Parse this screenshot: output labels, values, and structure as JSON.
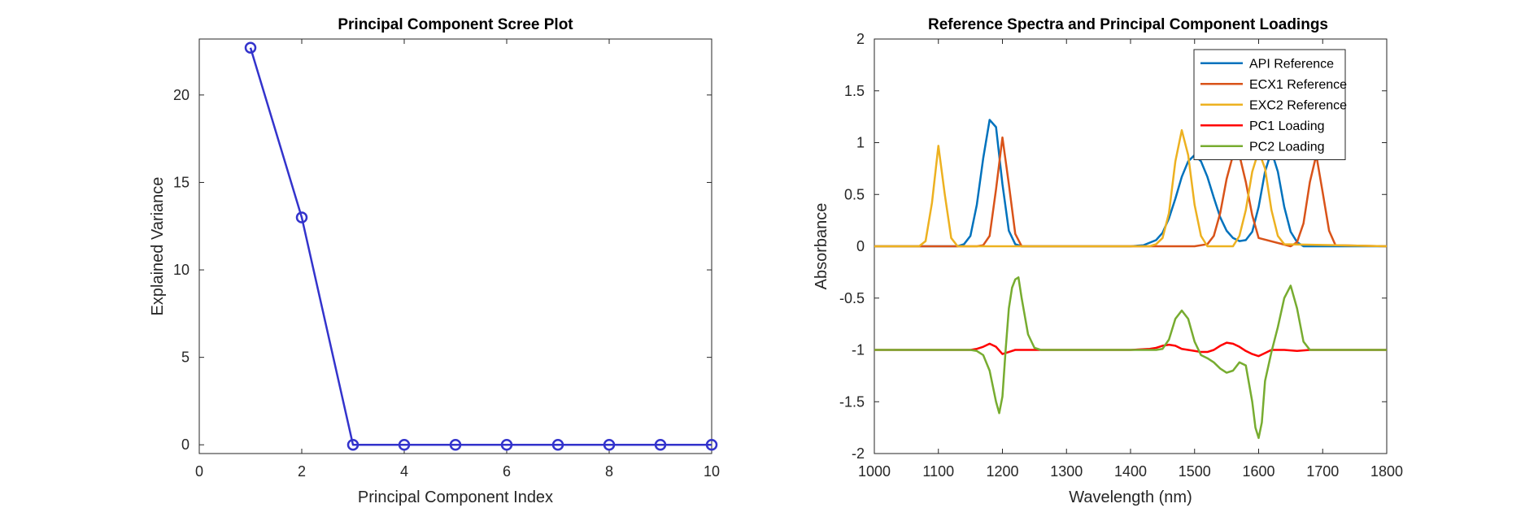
{
  "chart_data": [
    {
      "type": "line",
      "title": "Principal Component Scree Plot",
      "xlabel": "Principal Component Index",
      "ylabel": "Explained Variance",
      "xlim": [
        0,
        10
      ],
      "ylim": [
        -0.5,
        23.2
      ],
      "xticks": [
        0,
        2,
        4,
        6,
        8,
        10
      ],
      "yticks": [
        0,
        5,
        10,
        15,
        20
      ],
      "grid": false,
      "series": [
        {
          "color": "#3333cc",
          "marker": "circle",
          "x": [
            1,
            2,
            3,
            4,
            5,
            6,
            7,
            8,
            9,
            10
          ],
          "y": [
            22.7,
            13.0,
            0,
            0,
            0,
            0,
            0,
            0,
            0,
            0
          ]
        }
      ]
    },
    {
      "type": "line",
      "title": "Reference Spectra and Principal Component Loadings",
      "xlabel": "Wavelength (nm)",
      "ylabel": "Absorbance",
      "xlim": [
        1000,
        1800
      ],
      "ylim": [
        -2,
        2
      ],
      "xticks": [
        1000,
        1100,
        1200,
        1300,
        1400,
        1500,
        1600,
        1700,
        1800
      ],
      "yticks": [
        -2,
        -1.5,
        -1,
        -0.5,
        0,
        0.5,
        1,
        1.5,
        2
      ],
      "ytick_labels": [
        "-2",
        "-1.5",
        "-1",
        "-0.5",
        "0",
        "0.5",
        "1",
        "1.5",
        "2"
      ],
      "grid": false,
      "legend_position": "top-right",
      "series": [
        {
          "name": "API Reference",
          "color": "#0072BD",
          "x": [
            1000,
            1130,
            1140,
            1150,
            1160,
            1170,
            1180,
            1190,
            1200,
            1210,
            1220,
            1230,
            1400,
            1420,
            1440,
            1450,
            1460,
            1470,
            1480,
            1490,
            1500,
            1510,
            1520,
            1530,
            1540,
            1550,
            1560,
            1570,
            1580,
            1590,
            1600,
            1610,
            1620,
            1630,
            1640,
            1650,
            1660,
            1670,
            1800
          ],
          "y": [
            0,
            0,
            0.02,
            0.1,
            0.4,
            0.85,
            1.22,
            1.15,
            0.6,
            0.15,
            0.02,
            0,
            0,
            0.01,
            0.06,
            0.13,
            0.27,
            0.46,
            0.67,
            0.82,
            0.88,
            0.82,
            0.67,
            0.47,
            0.28,
            0.15,
            0.08,
            0.05,
            0.06,
            0.14,
            0.38,
            0.72,
            0.92,
            0.72,
            0.38,
            0.14,
            0.04,
            0,
            0
          ]
        },
        {
          "name": "ECX1 Reference",
          "color": "#D95319",
          "x": [
            1000,
            1160,
            1170,
            1180,
            1190,
            1200,
            1210,
            1220,
            1230,
            1500,
            1520,
            1530,
            1540,
            1550,
            1560,
            1570,
            1580,
            1590,
            1600,
            1650,
            1660,
            1670,
            1680,
            1690,
            1700,
            1710,
            1720,
            1800
          ],
          "y": [
            0,
            0,
            0.01,
            0.1,
            0.55,
            1.05,
            0.6,
            0.12,
            0,
            0,
            0.02,
            0.1,
            0.32,
            0.65,
            0.88,
            0.88,
            0.62,
            0.3,
            0.08,
            0,
            0.04,
            0.22,
            0.62,
            0.88,
            0.52,
            0.15,
            0.01,
            0
          ]
        },
        {
          "name": "EXC2 Reference",
          "color": "#EDB120",
          "x": [
            1000,
            1070,
            1080,
            1090,
            1100,
            1110,
            1120,
            1130,
            1430,
            1440,
            1450,
            1460,
            1470,
            1480,
            1490,
            1500,
            1510,
            1520,
            1560,
            1570,
            1580,
            1590,
            1600,
            1610,
            1620,
            1630,
            1640,
            1800
          ],
          "y": [
            0,
            0,
            0.05,
            0.42,
            0.97,
            0.5,
            0.08,
            0,
            0,
            0.02,
            0.08,
            0.32,
            0.82,
            1.12,
            0.88,
            0.4,
            0.1,
            0,
            0,
            0.1,
            0.35,
            0.72,
            0.92,
            0.75,
            0.35,
            0.1,
            0.02,
            0
          ]
        },
        {
          "name": "PC1 Loading",
          "color": "#FF0000",
          "x": [
            1000,
            1150,
            1160,
            1170,
            1180,
            1190,
            1200,
            1210,
            1220,
            1240,
            1400,
            1430,
            1440,
            1450,
            1460,
            1470,
            1480,
            1490,
            1500,
            1510,
            1520,
            1530,
            1540,
            1550,
            1560,
            1570,
            1580,
            1590,
            1600,
            1610,
            1620,
            1630,
            1640,
            1660,
            1680,
            1700,
            1800
          ],
          "y": [
            -1,
            -1,
            -0.99,
            -0.97,
            -0.94,
            -0.97,
            -1.04,
            -1.02,
            -1.0,
            -1,
            -1,
            -0.99,
            -0.98,
            -0.96,
            -0.95,
            -0.96,
            -0.99,
            -1.0,
            -1.01,
            -1.02,
            -1.02,
            -1.0,
            -0.96,
            -0.93,
            -0.94,
            -0.97,
            -1.01,
            -1.04,
            -1.06,
            -1.03,
            -1.0,
            -1.0,
            -1.0,
            -1.01,
            -1.0,
            -1.0,
            -1
          ]
        },
        {
          "name": "PC2 Loading",
          "color": "#77AC30",
          "x": [
            1000,
            1150,
            1160,
            1170,
            1180,
            1190,
            1195,
            1200,
            1205,
            1210,
            1215,
            1220,
            1225,
            1230,
            1240,
            1250,
            1260,
            1400,
            1430,
            1440,
            1450,
            1460,
            1470,
            1480,
            1490,
            1500,
            1510,
            1520,
            1530,
            1540,
            1550,
            1560,
            1570,
            1580,
            1590,
            1595,
            1600,
            1605,
            1610,
            1620,
            1630,
            1640,
            1650,
            1660,
            1670,
            1680,
            1800
          ],
          "y": [
            -1,
            -1,
            -1.01,
            -1.05,
            -1.2,
            -1.5,
            -1.61,
            -1.45,
            -1.0,
            -0.6,
            -0.4,
            -0.32,
            -0.3,
            -0.5,
            -0.85,
            -0.98,
            -1.0,
            -1,
            -1.0,
            -1.0,
            -0.99,
            -0.9,
            -0.7,
            -0.62,
            -0.7,
            -0.92,
            -1.05,
            -1.08,
            -1.12,
            -1.18,
            -1.22,
            -1.2,
            -1.12,
            -1.15,
            -1.5,
            -1.75,
            -1.85,
            -1.7,
            -1.3,
            -1.02,
            -0.78,
            -0.5,
            -0.38,
            -0.6,
            -0.92,
            -1.0,
            -1
          ]
        }
      ]
    }
  ]
}
